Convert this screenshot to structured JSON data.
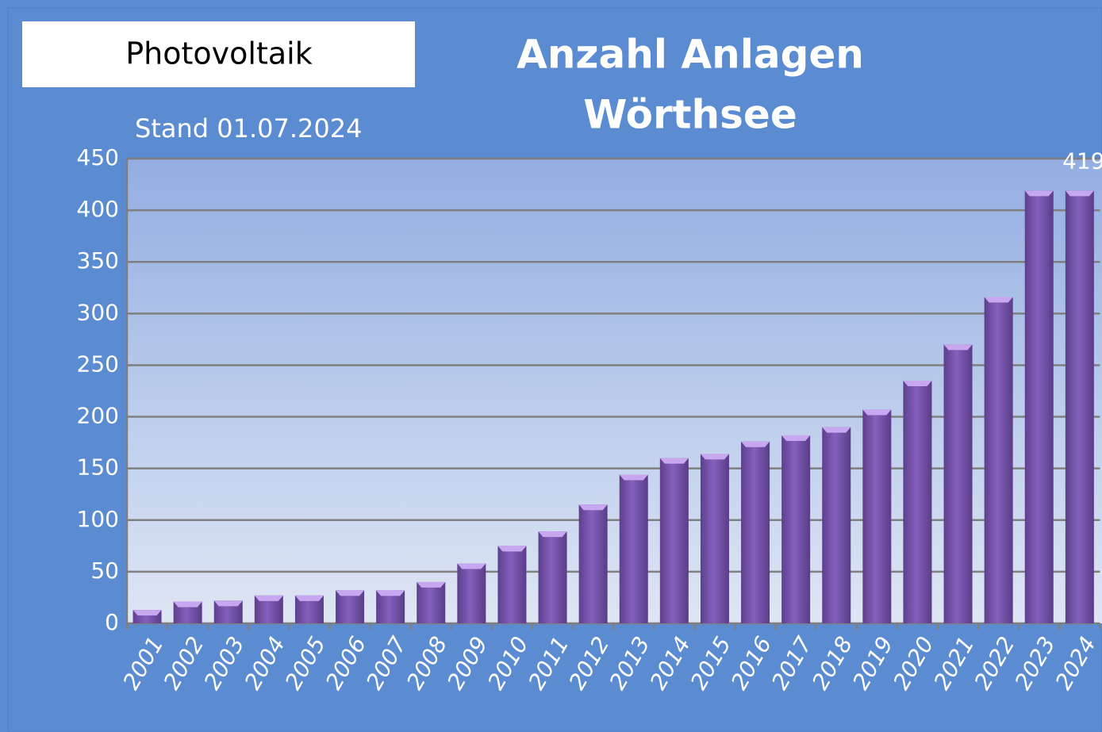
{
  "chart_data": {
    "type": "bar",
    "label": "Photovoltaik",
    "title": [
      "Anzahl Anlagen",
      "Wörthsee"
    ],
    "subtitle": "Stand 01.07.2024",
    "categories": [
      "2001",
      "2002",
      "2003",
      "2004",
      "2005",
      "2006",
      "2007",
      "2008",
      "2009",
      "2010",
      "2011",
      "2012",
      "2013",
      "2014",
      "2015",
      "2016",
      "2017",
      "2018",
      "2019",
      "2020",
      "2021",
      "2022",
      "2023",
      "2024"
    ],
    "values": [
      13,
      21,
      22,
      27,
      27,
      32,
      32,
      40,
      58,
      75,
      89,
      115,
      144,
      160,
      164,
      176,
      182,
      190,
      207,
      235,
      270,
      316,
      419,
      419
    ],
    "value_labels": [
      null,
      null,
      null,
      null,
      null,
      null,
      null,
      null,
      null,
      null,
      null,
      null,
      null,
      null,
      null,
      null,
      null,
      null,
      null,
      null,
      null,
      null,
      null,
      "419"
    ],
    "color": "#7b58b0",
    "ylim": [
      0,
      450
    ],
    "yticks": [
      0,
      50,
      100,
      150,
      200,
      250,
      300,
      350,
      400,
      450
    ],
    "grid": true
  }
}
